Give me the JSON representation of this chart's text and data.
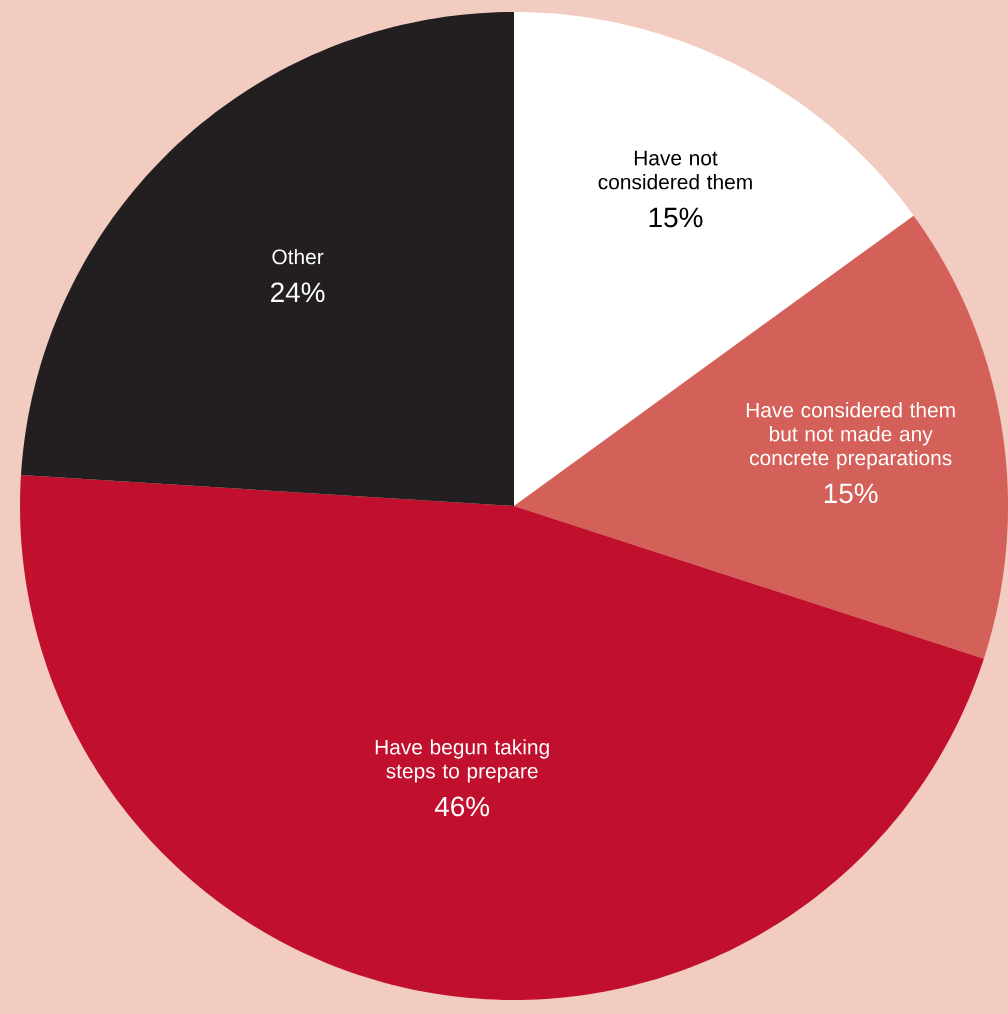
{
  "chart_data": {
    "type": "pie",
    "categories": [
      "Have not considered them",
      "Have considered them but not made any concrete preparations",
      "Have begun taking steps to prepare",
      "Other"
    ],
    "values": [
      15,
      15,
      46,
      24
    ],
    "value_labels": [
      "15%",
      "15%",
      "46%",
      "24%"
    ],
    "colors": [
      "#ffffff",
      "#d4605a",
      "#c0102e",
      "#231f20"
    ]
  }
}
